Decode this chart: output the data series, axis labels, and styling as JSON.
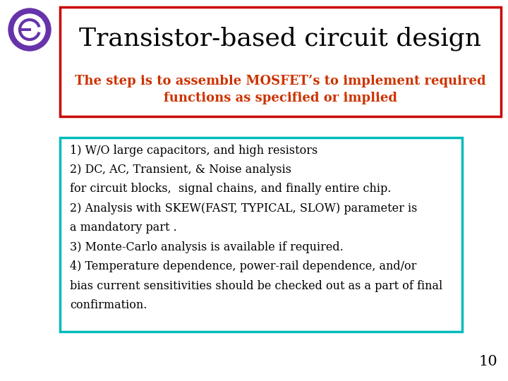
{
  "title": "Transistor-based circuit design",
  "subtitle": "The step is to assemble MOSFET’s to implement required\nfunctions as specified or implied",
  "title_color": "#000000",
  "subtitle_color": "#cc3300",
  "title_box_edge_color": "#cc0000",
  "content_box_edge_color": "#00bbbb",
  "background_color": "#ffffff",
  "content_lines": [
    "1) W/O large capacitors, and high resistors",
    "2) DC, AC, Transient, & Noise analysis",
    "for circuit blocks,  signal chains, and finally entire chip.",
    "2) Analysis with SKEW(FAST, TYPICAL, SLOW) parameter is",
    "a mandatory part .",
    "3) Monte-Carlo analysis is available if required.",
    "4) Temperature dependence, power-rail dependence, and/or",
    "bias current sensitivities should be checked out as a part of final",
    "confirmation."
  ],
  "content_text_color": "#000000",
  "page_number": "10",
  "title_fontsize": 26,
  "subtitle_fontsize": 13,
  "content_fontsize": 11.5,
  "page_num_fontsize": 15,
  "logo_color": "#6633aa",
  "logo_inner_color": "#ffffff"
}
